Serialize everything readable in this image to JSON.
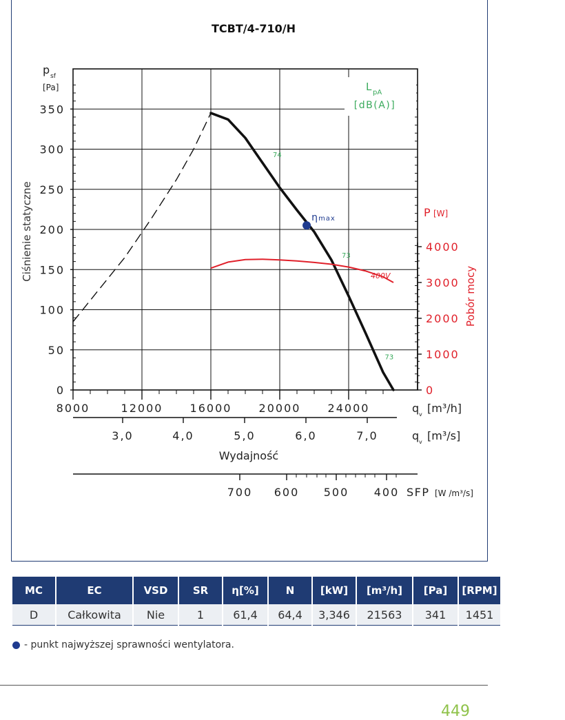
{
  "chart_data": {
    "type": "line",
    "title": "TCBT/4-710/H",
    "ylabel": "Ciśnienie statyczne",
    "ysymbol": "p",
    "ysymbol_sub": "sf",
    "yunit": "[Pa]",
    "ylim": [
      0,
      400
    ],
    "yticks": [
      "0",
      "50",
      "100",
      "150",
      "200",
      "250",
      "300",
      "350"
    ],
    "xlim": [
      8000,
      28000
    ],
    "xticks": [
      "8000",
      "12000",
      "16000",
      "20000",
      "24000"
    ],
    "xunit_symbol": "q",
    "xunit_sub": "v",
    "xunit_m3h": "[m³/h]",
    "x2ticks": [
      "3,0",
      "4,0",
      "5,0",
      "6,0",
      "7,0"
    ],
    "xunit_m3s": "[m³/s]",
    "xlabel": "Wydajność",
    "sfp_ticks": [
      "700",
      "600",
      "500",
      "400"
    ],
    "sfp_label": "SFP",
    "sfp_unit": "[W /m³/s]",
    "lpa_label": "L",
    "lpa_sub": "pA",
    "lpa_unit": "[dB(A)]",
    "power_label": "P",
    "power_unit": "[W]",
    "power_axis_title": "Pobór mocy",
    "power_ylim": [
      0,
      4000
    ],
    "power_ticks": [
      "0",
      "1000",
      "2000",
      "3000",
      "4000"
    ],
    "series": [
      {
        "role": "unstable",
        "x": [
          8000,
          9500,
          11000,
          12500,
          14000,
          15000,
          16000
        ],
        "y": [
          85,
          125,
          165,
          212,
          262,
          300,
          345
        ]
      },
      {
        "role": "pressure",
        "x": [
          16000,
          17000,
          18000,
          19000,
          20000,
          21000,
          22000,
          23000,
          24000,
          25000,
          26000,
          26600
        ],
        "y": [
          345,
          337,
          314,
          283,
          252,
          224,
          197,
          162,
          117,
          70,
          22,
          0
        ]
      },
      {
        "name": "400V",
        "role": "power",
        "x": [
          16000,
          17000,
          18000,
          19000,
          20000,
          21000,
          22000,
          23000,
          24000,
          25000,
          26000,
          26600
        ],
        "y": [
          3400,
          3570,
          3640,
          3650,
          3630,
          3600,
          3560,
          3510,
          3430,
          3320,
          3160,
          3000
        ]
      }
    ],
    "noise_labels": [
      {
        "x": 19600,
        "y": 290,
        "text": "74"
      },
      {
        "x": 23600,
        "y": 165,
        "text": "73"
      },
      {
        "x": 26100,
        "y": 38,
        "text": "73"
      }
    ],
    "eta_point": {
      "x": 21563,
      "y": 205,
      "label": "η",
      "label_sub": "max"
    },
    "colors": {
      "pressure": "#111111",
      "power": "#e0202a",
      "noise": "#3aaa5c",
      "eta": "#1f3b8f"
    }
  },
  "table": {
    "headers": [
      "MC",
      "EC",
      "VSD",
      "SR",
      "η[%]",
      "N",
      "[kW]",
      "[m³/h]",
      "[Pa]",
      "[RPM]"
    ],
    "row": [
      "D",
      "Całkowita",
      "Nie",
      "1",
      "61,4",
      "64,4",
      "3,346",
      "21563",
      "341",
      "1451"
    ],
    "header_color": "#1f3b73"
  },
  "legend_note": "- punkt najwyższej sprawności wentylatora.",
  "page_number": "449"
}
